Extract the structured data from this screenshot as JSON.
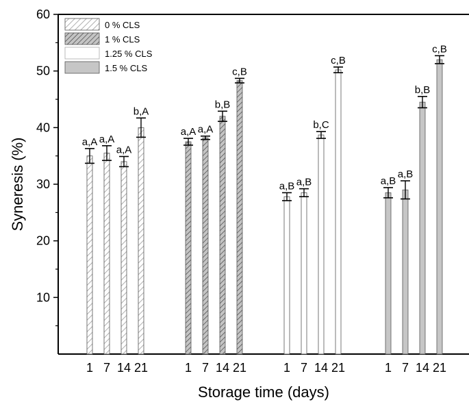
{
  "chart_data": {
    "type": "bar",
    "xlabel": "Storage time (days)",
    "ylabel": "Syneresis (%)",
    "ylim": [
      0,
      60
    ],
    "yticks": [
      10,
      20,
      30,
      40,
      50,
      60
    ],
    "categories": [
      "1",
      "7",
      "14",
      "21"
    ],
    "legend_position": "top-left",
    "grid": false,
    "series": [
      {
        "name": "0 % CLS",
        "pattern": "hatch-light",
        "values": [
          35.0,
          35.5,
          34.0,
          40.0
        ],
        "errors": [
          1.3,
          1.3,
          0.9,
          1.7
        ],
        "labels": [
          "a,A",
          "a,A",
          "a,A",
          "b,A"
        ]
      },
      {
        "name": "1 % CLS",
        "pattern": "hatch-dark",
        "values": [
          37.5,
          38.2,
          42.0,
          48.3
        ],
        "errors": [
          0.6,
          0.3,
          0.9,
          0.4
        ],
        "labels": [
          "a,A",
          "a,A",
          "b,B",
          "c,B"
        ]
      },
      {
        "name": "1.25 % CLS",
        "pattern": "white",
        "values": [
          27.8,
          28.5,
          38.7,
          50.2
        ],
        "errors": [
          0.7,
          0.7,
          0.6,
          0.5
        ],
        "labels": [
          "a,B",
          "a,B",
          "b,C",
          "c,B"
        ]
      },
      {
        "name": "1.5 % CLS",
        "pattern": "gray",
        "values": [
          28.5,
          29.0,
          44.5,
          52.0
        ],
        "errors": [
          0.9,
          1.6,
          1.0,
          0.7
        ],
        "labels": [
          "a,B",
          "a,B",
          "b,B",
          "c,B"
        ]
      }
    ]
  }
}
